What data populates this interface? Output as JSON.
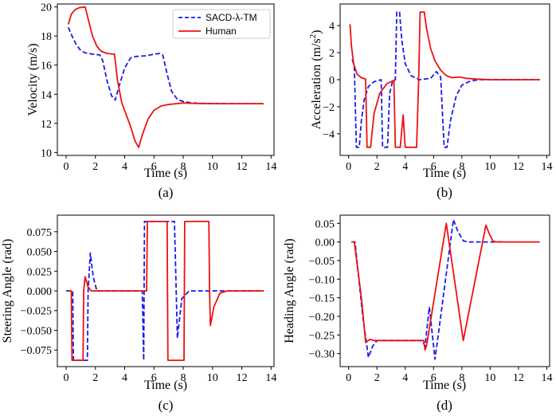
{
  "chart_data": [
    {
      "type": "line",
      "caption": "(a)",
      "xlabel": "Time (s)",
      "ylabel": "Velocity (m/s)",
      "xlim": [
        -0.6,
        14.2
      ],
      "ylim": [
        9.8,
        20.2
      ],
      "xticks": [
        0,
        2,
        4,
        6,
        8,
        10,
        12,
        14
      ],
      "yticks": [
        10,
        12,
        14,
        16,
        18,
        20
      ],
      "xtick_labels": [
        "0",
        "2",
        "4",
        "6",
        "8",
        "10",
        "12",
        "14"
      ],
      "ytick_labels": [
        "10",
        "12",
        "14",
        "16",
        "18",
        "20"
      ],
      "legend": {
        "position": "top-right",
        "entries": [
          "SACD-λ-TM",
          "Human"
        ]
      },
      "series": [
        {
          "name": "SACD-λ-TM",
          "color": "#1a1aee",
          "dash": "dashed",
          "points": [
            [
              0.15,
              18.6
            ],
            [
              0.4,
              18.0
            ],
            [
              0.7,
              17.4
            ],
            [
              1.0,
              17.0
            ],
            [
              1.3,
              16.85
            ],
            [
              1.8,
              16.75
            ],
            [
              2.3,
              16.7
            ],
            [
              2.5,
              16.3
            ],
            [
              2.8,
              14.9
            ],
            [
              3.1,
              13.9
            ],
            [
              3.35,
              13.6
            ],
            [
              3.6,
              14.5
            ],
            [
              4.0,
              15.8
            ],
            [
              4.4,
              16.5
            ],
            [
              4.8,
              16.6
            ],
            [
              5.5,
              16.65
            ],
            [
              6.0,
              16.75
            ],
            [
              6.4,
              16.8
            ],
            [
              6.6,
              16.7
            ],
            [
              6.9,
              15.4
            ],
            [
              7.2,
              14.2
            ],
            [
              7.6,
              13.65
            ],
            [
              8.0,
              13.5
            ],
            [
              8.5,
              13.42
            ],
            [
              9.0,
              13.38
            ],
            [
              10,
              13.36
            ],
            [
              11,
              13.35
            ],
            [
              12,
              13.35
            ],
            [
              13.5,
              13.35
            ]
          ]
        },
        {
          "name": "Human",
          "color": "#ee1111",
          "dash": "solid",
          "points": [
            [
              0.15,
              18.8
            ],
            [
              0.35,
              19.5
            ],
            [
              0.6,
              19.8
            ],
            [
              0.9,
              19.95
            ],
            [
              1.3,
              20.0
            ],
            [
              1.5,
              19.2
            ],
            [
              1.8,
              18.0
            ],
            [
              2.1,
              17.3
            ],
            [
              2.4,
              16.95
            ],
            [
              2.8,
              16.8
            ],
            [
              3.3,
              16.75
            ],
            [
              3.5,
              15.0
            ],
            [
              3.8,
              13.4
            ],
            [
              4.1,
              12.6
            ],
            [
              4.4,
              11.8
            ],
            [
              4.7,
              10.8
            ],
            [
              4.95,
              10.35
            ],
            [
              5.2,
              11.2
            ],
            [
              5.6,
              12.3
            ],
            [
              6.0,
              12.9
            ],
            [
              6.5,
              13.2
            ],
            [
              7.0,
              13.3
            ],
            [
              7.5,
              13.35
            ],
            [
              8.0,
              13.4
            ],
            [
              8.5,
              13.38
            ],
            [
              9.0,
              13.37
            ],
            [
              10,
              13.36
            ],
            [
              11,
              13.35
            ],
            [
              12,
              13.35
            ],
            [
              13.5,
              13.35
            ]
          ]
        }
      ]
    },
    {
      "type": "line",
      "caption": "(b)",
      "xlabel": "Time (s)",
      "ylabel_main": "Acceleration (m/s",
      "ylabel_sup": "2",
      "ylabel_end": ")",
      "xlim": [
        -0.6,
        14.2
      ],
      "ylim": [
        -5.6,
        5.6
      ],
      "xticks": [
        0,
        2,
        4,
        6,
        8,
        10,
        12,
        14
      ],
      "yticks": [
        -4,
        -2,
        0,
        2,
        4
      ],
      "xtick_labels": [
        "0",
        "2",
        "4",
        "6",
        "8",
        "10",
        "12",
        "14"
      ],
      "ytick_labels": [
        "−4",
        "−2",
        "0",
        "2",
        "4"
      ],
      "series": [
        {
          "name": "SACD-λ-TM",
          "color": "#1a1aee",
          "dash": "dashed",
          "points": [
            [
              0.25,
              1.5
            ],
            [
              0.4,
              1.0
            ],
            [
              0.55,
              -5.0
            ],
            [
              0.75,
              -5.0
            ],
            [
              0.9,
              -3.0
            ],
            [
              1.1,
              -1.5
            ],
            [
              1.4,
              -0.5
            ],
            [
              1.8,
              -0.15
            ],
            [
              2.3,
              0.0
            ],
            [
              2.4,
              -5.0
            ],
            [
              2.75,
              -5.0
            ],
            [
              2.9,
              -1.0
            ],
            [
              3.1,
              -0.1
            ],
            [
              3.3,
              0.0
            ],
            [
              3.4,
              5.0
            ],
            [
              3.6,
              5.0
            ],
            [
              3.75,
              3.0
            ],
            [
              4.0,
              1.2
            ],
            [
              4.4,
              0.3
            ],
            [
              5.0,
              0.0
            ],
            [
              5.8,
              0.1
            ],
            [
              6.2,
              0.6
            ],
            [
              6.5,
              0.2
            ],
            [
              6.75,
              -5.0
            ],
            [
              6.95,
              -5.0
            ],
            [
              7.2,
              -3.0
            ],
            [
              7.6,
              -1.2
            ],
            [
              8.0,
              -0.4
            ],
            [
              8.6,
              -0.1
            ],
            [
              9.2,
              0.0
            ],
            [
              10,
              0.0
            ],
            [
              11,
              0.0
            ],
            [
              12,
              0.0
            ],
            [
              13.5,
              0.0
            ]
          ]
        },
        {
          "name": "Human",
          "color": "#ee1111",
          "dash": "solid",
          "points": [
            [
              0.1,
              4.1
            ],
            [
              0.2,
              2.5
            ],
            [
              0.35,
              1.2
            ],
            [
              0.6,
              0.4
            ],
            [
              0.9,
              0.15
            ],
            [
              1.2,
              0.05
            ],
            [
              1.3,
              -5.0
            ],
            [
              1.55,
              -5.0
            ],
            [
              1.8,
              -2.5
            ],
            [
              2.2,
              -1.0
            ],
            [
              2.7,
              -0.3
            ],
            [
              3.2,
              -0.05
            ],
            [
              3.3,
              -5.0
            ],
            [
              3.65,
              -5.0
            ],
            [
              3.85,
              -2.6
            ],
            [
              4.0,
              -5.0
            ],
            [
              4.6,
              -5.0
            ],
            [
              4.8,
              -5.0
            ],
            [
              4.95,
              0.0
            ],
            [
              5.05,
              5.0
            ],
            [
              5.35,
              5.0
            ],
            [
              5.5,
              3.8
            ],
            [
              5.8,
              2.3
            ],
            [
              6.1,
              1.4
            ],
            [
              6.5,
              0.7
            ],
            [
              6.9,
              0.3
            ],
            [
              7.3,
              0.15
            ],
            [
              7.8,
              0.2
            ],
            [
              8.3,
              0.1
            ],
            [
              9.0,
              0.05
            ],
            [
              10,
              0.0
            ],
            [
              11,
              0.0
            ],
            [
              12,
              0.0
            ],
            [
              13.5,
              0.0
            ]
          ]
        }
      ]
    },
    {
      "type": "line",
      "caption": "(c)",
      "xlabel": "Time (s)",
      "ylabel": "Steering Angle (rad)",
      "xlim": [
        -0.6,
        14.2
      ],
      "ylim": [
        -0.096,
        0.096
      ],
      "xticks": [
        0,
        2,
        4,
        6,
        8,
        10,
        12,
        14
      ],
      "yticks": [
        -0.075,
        -0.05,
        -0.025,
        0,
        0.025,
        0.05,
        0.075
      ],
      "xtick_labels": [
        "0",
        "2",
        "4",
        "6",
        "8",
        "10",
        "12",
        "14"
      ],
      "ytick_labels": [
        "−0.075",
        "−0.050",
        "−0.025",
        "0.000",
        "0.025",
        "0.050",
        "0.075"
      ],
      "series": [
        {
          "name": "SACD-λ-TM",
          "color": "#1a1aee",
          "dash": "dashed",
          "points": [
            [
              0,
              0
            ],
            [
              0.45,
              0
            ],
            [
              0.5,
              -0.088
            ],
            [
              1.45,
              -0.088
            ],
            [
              1.5,
              0.0
            ],
            [
              1.65,
              0.048
            ],
            [
              1.85,
              0.018
            ],
            [
              2.1,
              0.0
            ],
            [
              2.5,
              0.0
            ],
            [
              5.2,
              0.0
            ],
            [
              5.3,
              -0.088
            ],
            [
              5.35,
              0.088
            ],
            [
              7.4,
              0.088
            ],
            [
              7.6,
              -0.06
            ],
            [
              7.9,
              -0.01
            ],
            [
              8.4,
              0.0
            ],
            [
              9.0,
              0.0
            ],
            [
              10,
              0.0
            ],
            [
              11,
              0.0
            ],
            [
              12,
              0.0
            ],
            [
              13.5,
              0.0
            ]
          ]
        },
        {
          "name": "Human",
          "color": "#ee1111",
          "dash": "solid",
          "points": [
            [
              0.1,
              0
            ],
            [
              0.35,
              0
            ],
            [
              0.4,
              -0.088
            ],
            [
              1.15,
              -0.088
            ],
            [
              1.2,
              0.0
            ],
            [
              1.3,
              0.018
            ],
            [
              1.5,
              0.005
            ],
            [
              1.7,
              0.0
            ],
            [
              5.5,
              0.0
            ],
            [
              5.55,
              0.088
            ],
            [
              6.9,
              0.088
            ],
            [
              6.95,
              -0.088
            ],
            [
              8.05,
              -0.088
            ],
            [
              8.1,
              0.088
            ],
            [
              9.75,
              0.088
            ],
            [
              9.8,
              0.0
            ],
            [
              9.85,
              -0.044
            ],
            [
              10.1,
              -0.02
            ],
            [
              10.5,
              -0.003
            ],
            [
              11,
              0.0
            ],
            [
              12,
              0.0
            ],
            [
              13.5,
              0.0
            ]
          ]
        }
      ]
    },
    {
      "type": "line",
      "caption": "(d)",
      "xlabel": "Time (s)",
      "ylabel": "Heading Angle (rad)",
      "xlim": [
        -0.6,
        14.2
      ],
      "ylim": [
        -0.335,
        0.072
      ],
      "xticks": [
        0,
        2,
        4,
        6,
        8,
        10,
        12,
        14
      ],
      "yticks": [
        -0.3,
        -0.25,
        -0.2,
        -0.15,
        -0.1,
        -0.05,
        0,
        0.05
      ],
      "xtick_labels": [
        "0",
        "2",
        "4",
        "6",
        "8",
        "10",
        "12",
        "14"
      ],
      "ytick_labels": [
        "−0.30",
        "−0.25",
        "−0.20",
        "−0.15",
        "−0.10",
        "−0.05",
        "0.00",
        "0.05"
      ],
      "series": [
        {
          "name": "SACD-λ-TM",
          "color": "#1a1aee",
          "dash": "dashed",
          "points": [
            [
              0.2,
              0
            ],
            [
              0.45,
              0
            ],
            [
              1.0,
              -0.2
            ],
            [
              1.4,
              -0.31
            ],
            [
              1.7,
              -0.28
            ],
            [
              2.0,
              -0.265
            ],
            [
              2.5,
              -0.265
            ],
            [
              5.2,
              -0.265
            ],
            [
              5.4,
              -0.28
            ],
            [
              5.7,
              -0.175
            ],
            [
              6.1,
              -0.315
            ],
            [
              6.4,
              -0.23
            ],
            [
              7.4,
              0.06
            ],
            [
              7.7,
              0.03
            ],
            [
              8.1,
              0.003
            ],
            [
              8.5,
              0.0
            ],
            [
              9,
              0.0
            ],
            [
              10,
              0.0
            ],
            [
              11,
              0.0
            ]
          ]
        },
        {
          "name": "Human",
          "color": "#ee1111",
          "dash": "solid",
          "points": [
            [
              0.2,
              0
            ],
            [
              0.4,
              0
            ],
            [
              0.9,
              -0.15
            ],
            [
              1.2,
              -0.27
            ],
            [
              1.5,
              -0.262
            ],
            [
              1.8,
              -0.265
            ],
            [
              5.3,
              -0.265
            ],
            [
              5.4,
              -0.29
            ],
            [
              5.5,
              -0.28
            ],
            [
              6.9,
              0.05
            ],
            [
              8.1,
              -0.265
            ],
            [
              9.7,
              0.045
            ],
            [
              9.9,
              0.025
            ],
            [
              10.2,
              0.002
            ],
            [
              10.5,
              0.0
            ],
            [
              11,
              0.0
            ],
            [
              12,
              0.0
            ],
            [
              13.5,
              0.0
            ]
          ]
        }
      ]
    }
  ]
}
